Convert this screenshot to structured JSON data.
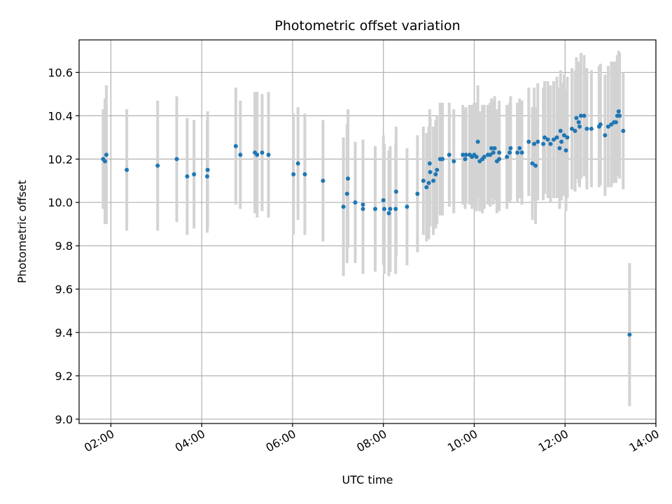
{
  "chart_data": {
    "type": "scatter",
    "title": "Photometric offset variation",
    "xlabel": "UTC time",
    "ylabel": "Photometric offset",
    "x_unit": "hour",
    "xlim": [
      1.3,
      14.0
    ],
    "ylim": [
      8.98,
      10.75
    ],
    "x_ticks": [
      2,
      4,
      6,
      8,
      10,
      12,
      14
    ],
    "x_tick_labels": [
      "02:00",
      "04:00",
      "06:00",
      "08:00",
      "10:00",
      "12:00",
      "14:00"
    ],
    "y_ticks": [
      9.0,
      9.2,
      9.4,
      9.6,
      9.8,
      10.0,
      10.2,
      10.4,
      10.6
    ],
    "y_tick_labels": [
      "9.0",
      "9.2",
      "9.4",
      "9.6",
      "9.8",
      "10.0",
      "10.2",
      "10.4",
      "10.6"
    ],
    "grid": true,
    "point_color": "#1f77b4",
    "errorbar_color": "#d3d3d3",
    "series": [
      {
        "points": [
          [
            1.83,
            10.2,
            0.23
          ],
          [
            1.87,
            10.19,
            0.29
          ],
          [
            1.9,
            10.22,
            0.32
          ],
          [
            2.35,
            10.15,
            0.28
          ],
          [
            3.03,
            10.17,
            0.3
          ],
          [
            3.45,
            10.2,
            0.29
          ],
          [
            3.68,
            10.12,
            0.27
          ],
          [
            3.83,
            10.13,
            0.25
          ],
          [
            4.12,
            10.12,
            0.26
          ],
          [
            4.13,
            10.15,
            0.27
          ],
          [
            4.75,
            10.26,
            0.27
          ],
          [
            4.85,
            10.22,
            0.25
          ],
          [
            5.17,
            10.23,
            0.28
          ],
          [
            5.22,
            10.22,
            0.29
          ],
          [
            5.33,
            10.23,
            0.27
          ],
          [
            5.47,
            10.22,
            0.29
          ],
          [
            6.02,
            10.13,
            0.28
          ],
          [
            6.12,
            10.18,
            0.26
          ],
          [
            6.27,
            10.13,
            0.28
          ],
          [
            6.67,
            10.1,
            0.28
          ],
          [
            7.12,
            9.98,
            0.32
          ],
          [
            7.2,
            10.04,
            0.32
          ],
          [
            7.22,
            10.11,
            0.32
          ],
          [
            7.38,
            10.0,
            0.28
          ],
          [
            7.55,
            9.99,
            0.3
          ],
          [
            7.55,
            9.97,
            0.3
          ],
          [
            7.82,
            9.97,
            0.29
          ],
          [
            8.0,
            10.01,
            0.3
          ],
          [
            8.02,
            9.97,
            0.3
          ],
          [
            8.12,
            9.95,
            0.29
          ],
          [
            8.15,
            9.97,
            0.29
          ],
          [
            8.27,
            9.97,
            0.3
          ],
          [
            8.28,
            10.05,
            0.3
          ],
          [
            8.52,
            9.98,
            0.27
          ],
          [
            8.75,
            10.04,
            0.27
          ],
          [
            8.88,
            10.1,
            0.25
          ],
          [
            8.95,
            10.07,
            0.25
          ],
          [
            9.0,
            10.09,
            0.26
          ],
          [
            9.02,
            10.18,
            0.25
          ],
          [
            9.03,
            10.14,
            0.25
          ],
          [
            9.1,
            10.1,
            0.25
          ],
          [
            9.15,
            10.13,
            0.25
          ],
          [
            9.18,
            10.15,
            0.25
          ],
          [
            9.25,
            10.2,
            0.26
          ],
          [
            9.3,
            10.2,
            0.26
          ],
          [
            9.45,
            10.22,
            0.24
          ],
          [
            9.55,
            10.19,
            0.24
          ],
          [
            9.75,
            10.22,
            0.23
          ],
          [
            9.8,
            10.2,
            0.23
          ],
          [
            9.82,
            10.22,
            0.22
          ],
          [
            9.9,
            10.22,
            0.23
          ],
          [
            9.95,
            10.21,
            0.24
          ],
          [
            10.0,
            10.22,
            0.24
          ],
          [
            10.05,
            10.21,
            0.25
          ],
          [
            10.08,
            10.28,
            0.26
          ],
          [
            10.12,
            10.19,
            0.23
          ],
          [
            10.18,
            10.2,
            0.25
          ],
          [
            10.22,
            10.21,
            0.24
          ],
          [
            10.3,
            10.22,
            0.23
          ],
          [
            10.35,
            10.22,
            0.24
          ],
          [
            10.38,
            10.25,
            0.23
          ],
          [
            10.42,
            10.23,
            0.24
          ],
          [
            10.45,
            10.25,
            0.24
          ],
          [
            10.5,
            10.19,
            0.24
          ],
          [
            10.55,
            10.2,
            0.24
          ],
          [
            10.55,
            10.23,
            0.24
          ],
          [
            10.72,
            10.21,
            0.24
          ],
          [
            10.78,
            10.23,
            0.23
          ],
          [
            10.8,
            10.25,
            0.24
          ],
          [
            10.95,
            10.23,
            0.23
          ],
          [
            11.0,
            10.25,
            0.23
          ],
          [
            11.05,
            10.23,
            0.24
          ],
          [
            11.2,
            10.28,
            0.25
          ],
          [
            11.28,
            10.18,
            0.26
          ],
          [
            11.32,
            10.27,
            0.26
          ],
          [
            11.35,
            10.17,
            0.27
          ],
          [
            11.4,
            10.28,
            0.27
          ],
          [
            11.52,
            10.27,
            0.26
          ],
          [
            11.55,
            10.3,
            0.26
          ],
          [
            11.62,
            10.29,
            0.27
          ],
          [
            11.68,
            10.27,
            0.27
          ],
          [
            11.75,
            10.29,
            0.27
          ],
          [
            11.82,
            10.3,
            0.28
          ],
          [
            11.88,
            10.25,
            0.28
          ],
          [
            11.9,
            10.33,
            0.28
          ],
          [
            11.92,
            10.28,
            0.27
          ],
          [
            11.98,
            10.31,
            0.28
          ],
          [
            12.02,
            10.24,
            0.28
          ],
          [
            12.05,
            10.3,
            0.28
          ],
          [
            12.15,
            10.34,
            0.28
          ],
          [
            12.22,
            10.33,
            0.28
          ],
          [
            12.25,
            10.39,
            0.28
          ],
          [
            12.3,
            10.37,
            0.28
          ],
          [
            12.32,
            10.35,
            0.28
          ],
          [
            12.35,
            10.4,
            0.29
          ],
          [
            12.42,
            10.4,
            0.28
          ],
          [
            12.48,
            10.34,
            0.28
          ],
          [
            12.58,
            10.34,
            0.27
          ],
          [
            12.75,
            10.35,
            0.28
          ],
          [
            12.78,
            10.36,
            0.28
          ],
          [
            12.88,
            10.31,
            0.28
          ],
          [
            12.95,
            10.35,
            0.28
          ],
          [
            13.02,
            10.36,
            0.29
          ],
          [
            13.08,
            10.37,
            0.28
          ],
          [
            13.12,
            10.37,
            0.28
          ],
          [
            13.15,
            10.4,
            0.28
          ],
          [
            13.18,
            10.42,
            0.28
          ],
          [
            13.2,
            10.4,
            0.29
          ],
          [
            13.28,
            10.33,
            0.27
          ],
          [
            13.42,
            9.39,
            0.33
          ]
        ]
      }
    ]
  }
}
